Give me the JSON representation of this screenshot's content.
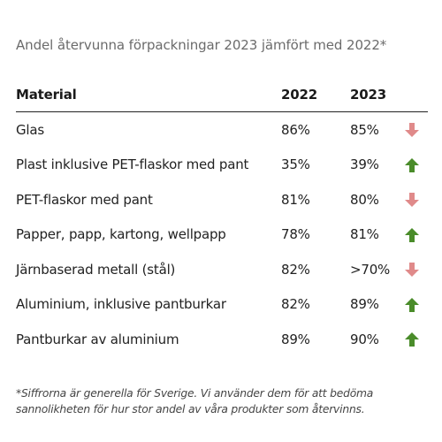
{
  "title": "Andel återvunna förpackningar 2023 jämfört med 2022*",
  "table": {
    "headers": {
      "material": "Material",
      "y2022": "2022",
      "y2023": "2023"
    },
    "rows": [
      {
        "material": "Glas",
        "y2022": "86%",
        "y2023": "85%",
        "trend": "down"
      },
      {
        "material": "Plast inklusive PET-flaskor med pant",
        "y2022": "35%",
        "y2023": "39%",
        "trend": "up"
      },
      {
        "material": "PET-flaskor med pant",
        "y2022": "81%",
        "y2023": "80%",
        "trend": "down"
      },
      {
        "material": "Papper, papp, kartong, wellpapp",
        "y2022": "78%",
        "y2023": "81%",
        "trend": "up"
      },
      {
        "material": "Järnbaserad metall (stål)",
        "y2022": "82%",
        "y2023": ">70%",
        "trend": "down"
      },
      {
        "material": "Aluminium, inklusive pantburkar",
        "y2022": "82%",
        "y2023": "89%",
        "trend": "up"
      },
      {
        "material": "Pantburkar av aluminium",
        "y2022": "89%",
        "y2023": "90%",
        "trend": "up"
      }
    ]
  },
  "icons": {
    "up": {
      "name": "arrow-up-icon",
      "color": "#4a8c2a"
    },
    "down": {
      "name": "arrow-down-icon",
      "color": "#e08a8a"
    }
  },
  "footnote": {
    "line1": "*Siffrorna är generella för Sverige. Vi använder dem för att bedöma",
    "line2": "sannolikheten för hur stor andel av våra produkter som återvinns."
  }
}
